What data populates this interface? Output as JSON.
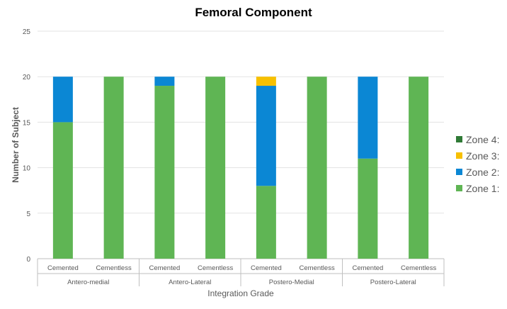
{
  "chart_data": {
    "type": "bar",
    "stacked": true,
    "title": "Femoral Component",
    "xlabel": "Integration Grade",
    "ylabel": "Number of Subject",
    "ylim": [
      0,
      25
    ],
    "yticks": [
      0,
      5,
      10,
      15,
      20,
      25
    ],
    "grid": true,
    "legend_position": "right",
    "groups": [
      "Antero-medial",
      "Antero-Lateral",
      "Postero-Medial",
      "Postero-Lateral"
    ],
    "categories": [
      "Cemented",
      "Cementless",
      "Cemented",
      "Cementless",
      "Cemented",
      "Cementless",
      "Cemented",
      "Cementless"
    ],
    "series": [
      {
        "name": "Zone 1:",
        "color": "#5fb554",
        "values": [
          15,
          20,
          19,
          20,
          8,
          20,
          11,
          20
        ]
      },
      {
        "name": "Zone 2:",
        "color": "#0b87d4",
        "values": [
          5,
          0,
          1,
          0,
          11,
          0,
          9,
          0
        ]
      },
      {
        "name": "Zone 3:",
        "color": "#f7c000",
        "values": [
          0,
          0,
          0,
          0,
          1,
          0,
          0,
          0
        ]
      },
      {
        "name": "Zone 4:",
        "color": "#2f7a36",
        "values": [
          0,
          0,
          0,
          0,
          0,
          0,
          0,
          0
        ]
      }
    ],
    "legend_order": [
      "Zone 4:",
      "Zone 3:",
      "Zone 2:",
      "Zone 1:"
    ]
  }
}
